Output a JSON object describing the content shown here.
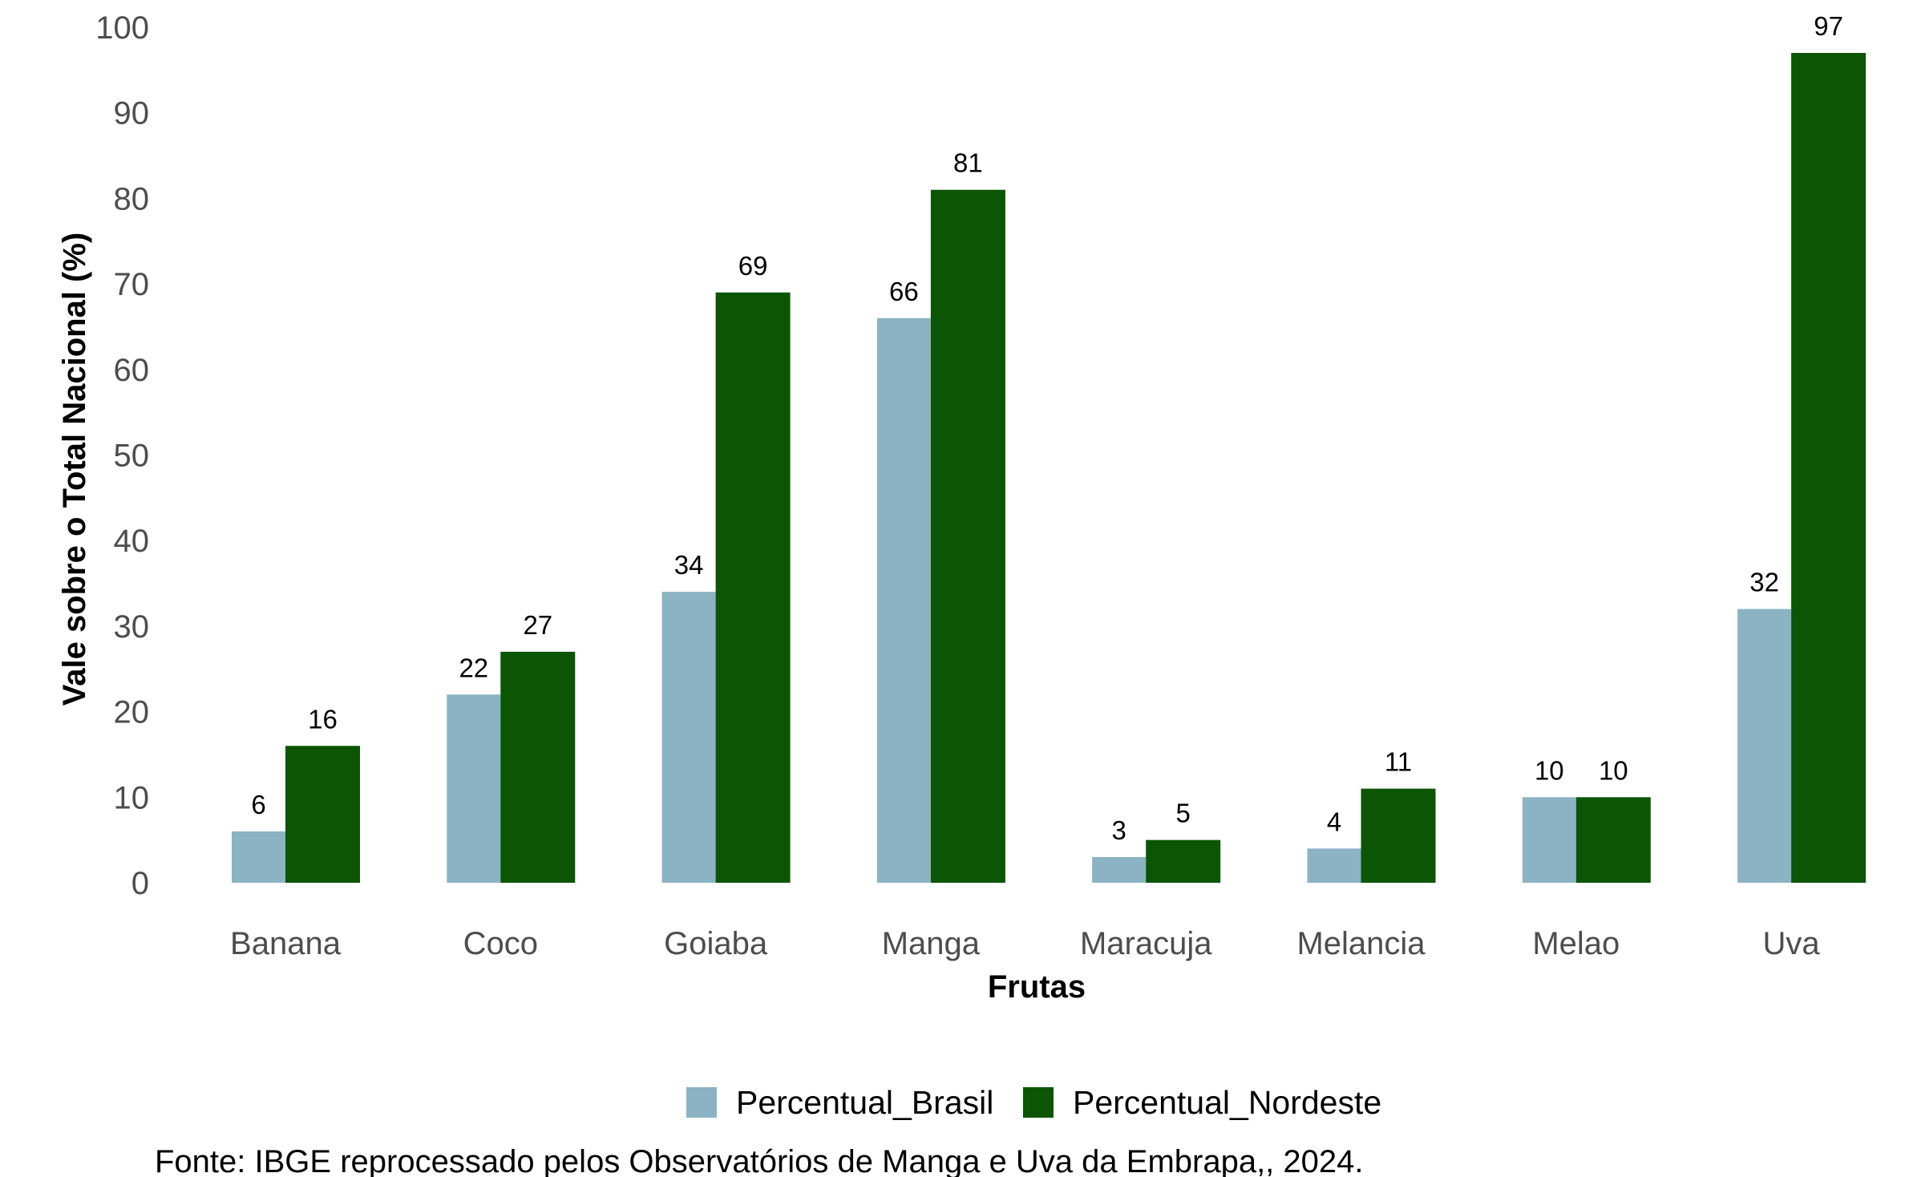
{
  "chart_data": {
    "type": "bar",
    "categories": [
      "Banana",
      "Coco",
      "Goiaba",
      "Manga",
      "Maracuja",
      "Melancia",
      "Melao",
      "Uva"
    ],
    "series": [
      {
        "name": "Percentual_Brasil",
        "values": [
          6,
          22,
          34,
          66,
          3,
          4,
          10,
          32
        ],
        "color": "#8bb3c3"
      },
      {
        "name": "Percentual_Nordeste",
        "values": [
          16,
          27,
          69,
          81,
          5,
          11,
          10,
          97
        ],
        "color": "#0b5505"
      }
    ],
    "xlabel": "Frutas",
    "ylabel": "Vale sobre o Total Nacional (%)",
    "ylim": [
      0,
      100
    ],
    "yticks": [
      0,
      10,
      20,
      30,
      40,
      50,
      60,
      70,
      80,
      90,
      100
    ],
    "grid": false,
    "legend_position": "bottom",
    "data_labels": true,
    "caption": "Fonte: IBGE reprocessado pelos Observatórios de Manga e Uva da Embrapa,, 2024."
  }
}
